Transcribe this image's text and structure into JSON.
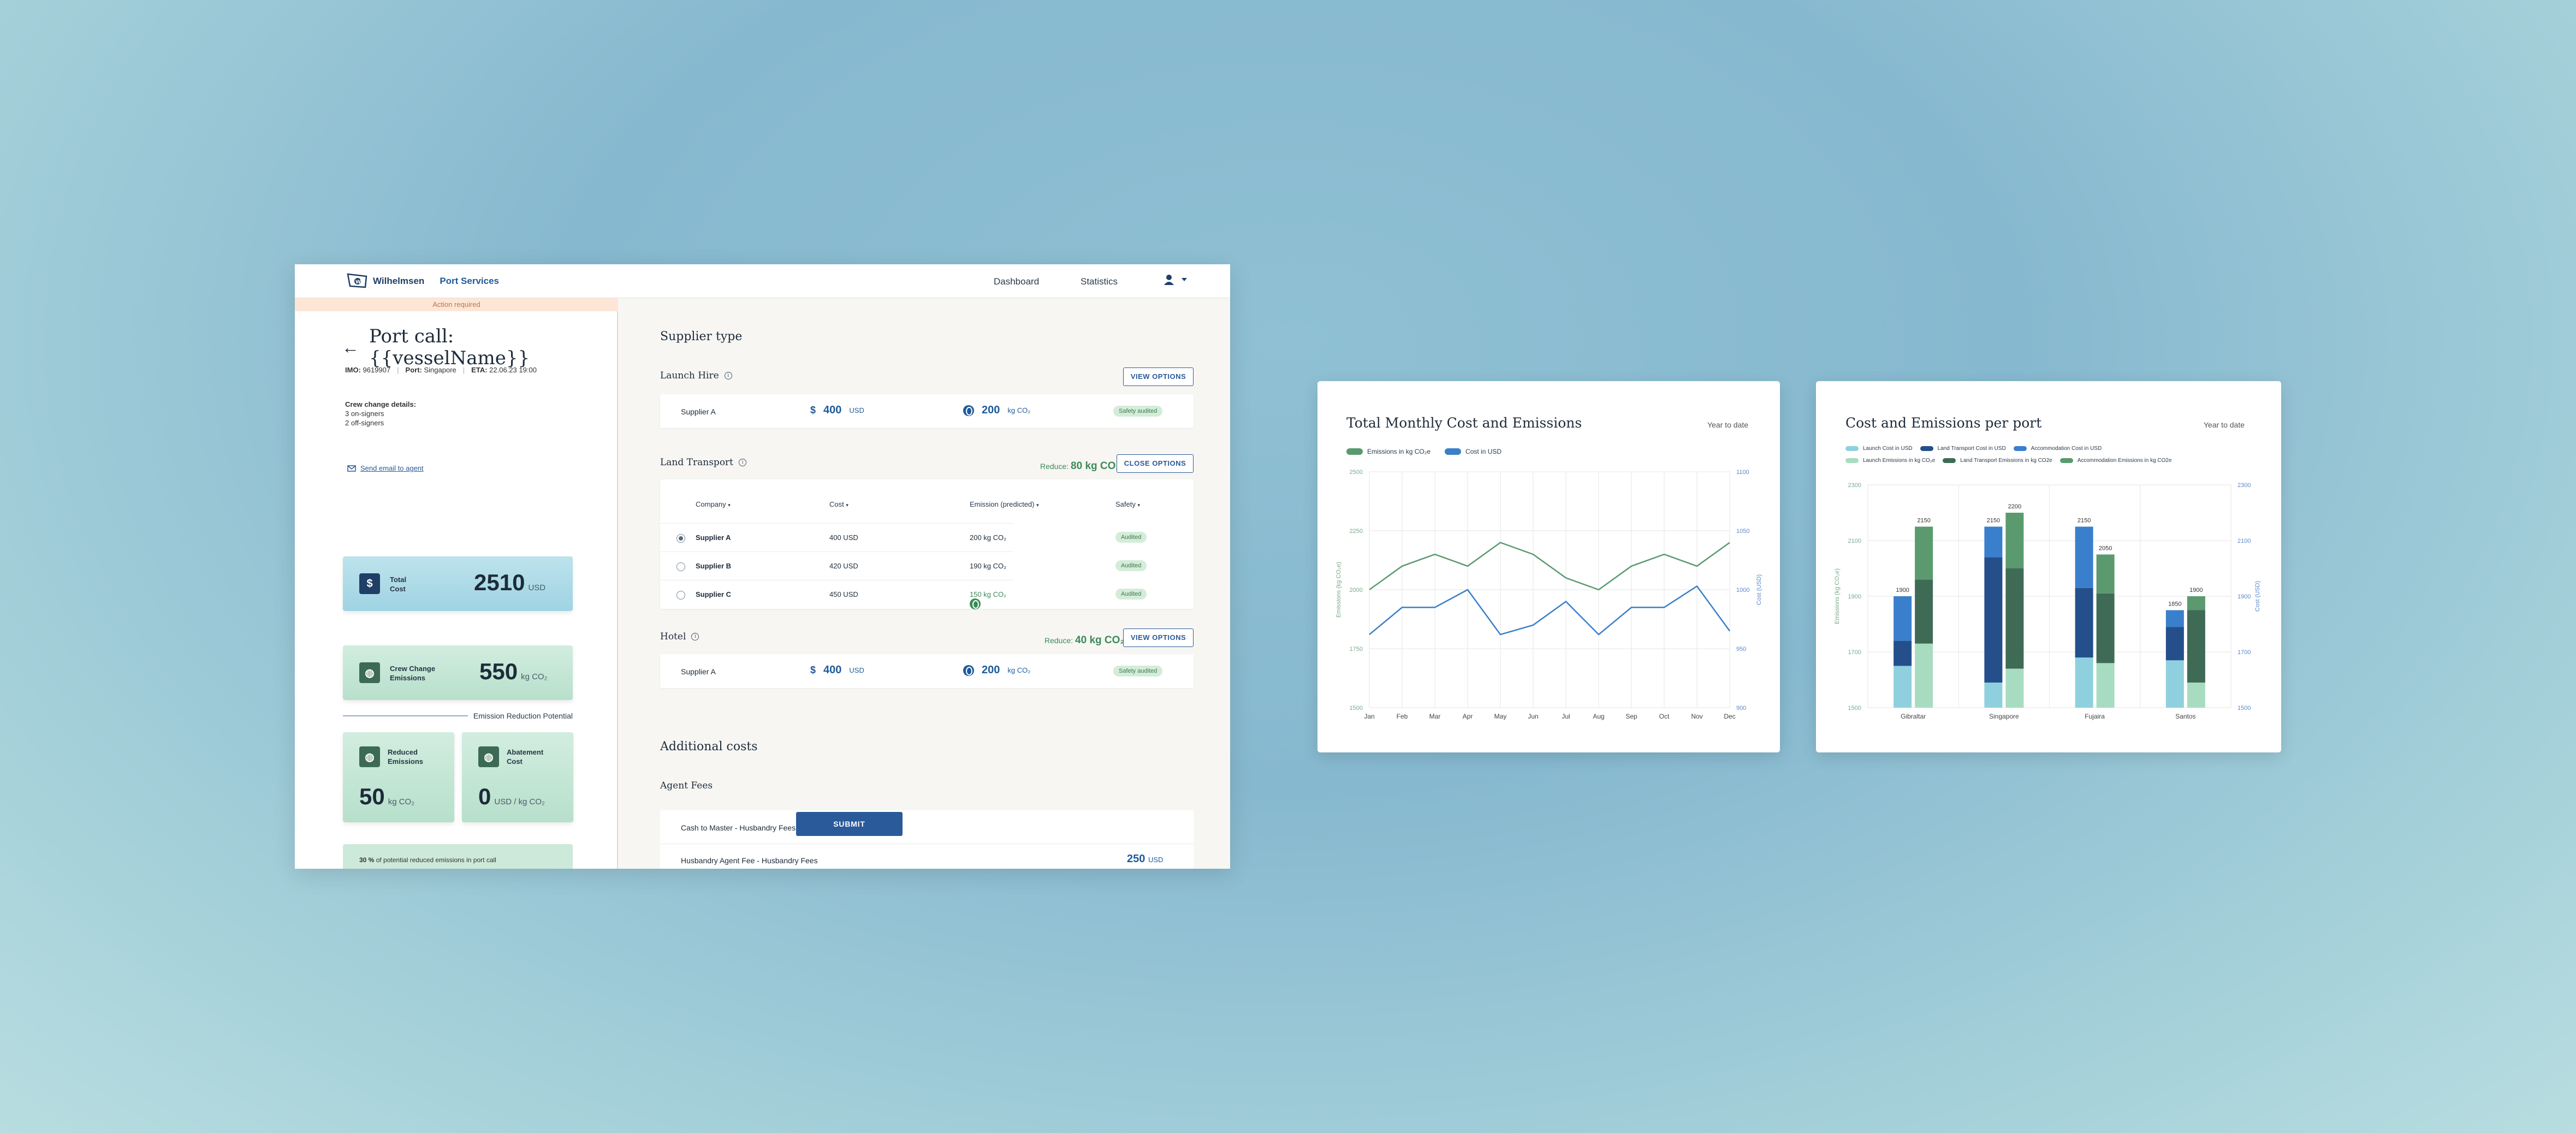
{
  "nav": {
    "brand": "Wilhelmsen",
    "product": "Port Services",
    "links": [
      "Dashboard",
      "Statistics"
    ]
  },
  "left": {
    "banner": "Action required",
    "title": "Port call: {{vesselName}}",
    "imo_label": "IMO:",
    "imo": "9619907",
    "port_label": "Port:",
    "port": "Singapore",
    "eta_label": "ETA:",
    "eta": "22.06.23 19:00",
    "crew_title": "Crew change details:",
    "crew_on": "3 on-signers",
    "crew_off": "2 off-signers",
    "send_email": "Send email to agent",
    "total_cost_label1": "Total",
    "total_cost_label2": "Cost",
    "total_cost": "2510",
    "total_cost_unit": "USD",
    "emissions_label1": "Crew Change",
    "emissions_label2": "Emissions",
    "emissions": "550",
    "emissions_unit": "kg CO₂",
    "erp": "Emission Reduction Potential",
    "reduced_label1": "Reduced",
    "reduced_label2": "Emissions",
    "reduced": "50",
    "reduced_unit": "kg CO₂",
    "abatement_label1": "Abatement",
    "abatement_label2": "Cost",
    "abatement": "0",
    "abatement_unit": "USD / kg CO₂",
    "progress_pct": "30 %",
    "progress_text": "of potential reduced emissions in port call",
    "progress_fraction": 0.3
  },
  "supplier": {
    "heading": "Supplier type",
    "launch": {
      "title": "Launch Hire",
      "button": "VIEW OPTIONS",
      "name": "Supplier A",
      "cost": "400",
      "cost_unit": "USD",
      "emission": "200",
      "emission_unit": "kg CO₂",
      "badge": "Safety audited"
    },
    "land": {
      "title": "Land Transport",
      "reduce_label": "Reduce:",
      "reduce_value": "80 kg CO₂",
      "button": "CLOSE OPTIONS",
      "headers": [
        "Company",
        "Cost",
        "Emission (predicted)",
        "Safety"
      ],
      "rows": [
        {
          "name": "Supplier A",
          "cost": "400 USD",
          "emission": "200 kg CO₂",
          "safety": "Audited"
        },
        {
          "name": "Supplier B",
          "cost": "420 USD",
          "emission": "190 kg CO₂",
          "safety": "Audited"
        },
        {
          "name": "Supplier C",
          "cost": "450 USD",
          "emission": "150 kg CO₂",
          "safety": "Audited"
        }
      ]
    },
    "hotel": {
      "title": "Hotel",
      "reduce_label": "Reduce:",
      "reduce_value": "40 kg CO₂",
      "button": "VIEW OPTIONS",
      "name": "Supplier A",
      "cost": "400",
      "cost_unit": "USD",
      "emission": "200",
      "emission_unit": "kg CO₂",
      "badge": "Safety audited"
    }
  },
  "additional": {
    "heading": "Additional costs",
    "sub": "Agent Fees",
    "submit": "SUBMIT",
    "rows": [
      {
        "name": "Cash to Master - Husbandry Fees",
        "value": "",
        "unit": ""
      },
      {
        "name": "Husbandry Agent Fee - Husbandry Fees",
        "value": "250",
        "unit": "USD"
      }
    ]
  },
  "colors": {
    "green": "#5a9a6e",
    "blue": "#3a7fc9",
    "navy": "#2a5a9a"
  },
  "chart_data": [
    {
      "type": "line",
      "title": "Total Monthly Cost and Emissions",
      "range_label": "Year to date",
      "ylabel": "Emissions (kg CO₂e)",
      "y2label": "Cost (USD)",
      "categories": [
        "Jan",
        "Feb",
        "Mar",
        "Apr",
        "May",
        "Jun",
        "Jul",
        "Aug",
        "Sep",
        "Oct",
        "Nov",
        "Dec"
      ],
      "ylim": [
        1500,
        2500
      ],
      "y2lim": [
        900,
        1100
      ],
      "yticks": [
        "1500",
        "1750",
        "2000",
        "2250",
        "2500"
      ],
      "y2ticks": [
        "900",
        "950",
        "1000",
        "1050",
        "1100"
      ],
      "legend": "top-left",
      "grid": true,
      "series": [
        {
          "name": "Emissions in kg CO₂e",
          "axis": "left",
          "values": [
            2000,
            2100,
            2150,
            2100,
            2200,
            2150,
            2050,
            2000,
            2100,
            2150,
            2100,
            2200
          ]
        },
        {
          "name": "Cost in USD",
          "axis": "right",
          "values": [
            962,
            985,
            985,
            1000,
            962,
            970,
            990,
            962,
            985,
            985,
            1003,
            965
          ]
        }
      ]
    },
    {
      "type": "bar",
      "title": "Cost and Emissions per port",
      "range_label": "Year to date",
      "ylabel": "Emissions (kg CO₂e)",
      "y2label": "Cost (USD)",
      "categories": [
        "Gibraltar",
        "Singapore",
        "Fujaira",
        "Santos"
      ],
      "yticks": [
        "1500",
        "1700",
        "1900",
        "2100",
        "2300"
      ],
      "y2ticks": [
        "1500",
        "1700",
        "1900",
        "2100",
        "2300"
      ],
      "ylim": [
        1500,
        2300
      ],
      "legend": "top-left",
      "grid": true,
      "cost_series_names": [
        "Launch Cost in USD",
        "Land Transport Cost in USD",
        "Accommodation Cost in USD"
      ],
      "emission_series_names": [
        "Launch Emissions in kg CO₂e",
        "Land Transport Emissions in kg CO2e",
        "Accommodation Emissions in kg CO2e"
      ],
      "cost_totals": [
        1900,
        2150,
        2150,
        1850
      ],
      "emission_totals": [
        2150,
        2200,
        2050,
        1900
      ],
      "cost_stacks": [
        [
          1650,
          1740,
          1900
        ],
        [
          1590,
          2040,
          2150
        ],
        [
          1680,
          1930,
          2150
        ],
        [
          1670,
          1790,
          1850
        ]
      ],
      "emission_stacks": [
        [
          1730,
          1960,
          2150
        ],
        [
          1640,
          2000,
          2200
        ],
        [
          1660,
          1910,
          2050
        ],
        [
          1590,
          1850,
          1900
        ]
      ]
    }
  ]
}
